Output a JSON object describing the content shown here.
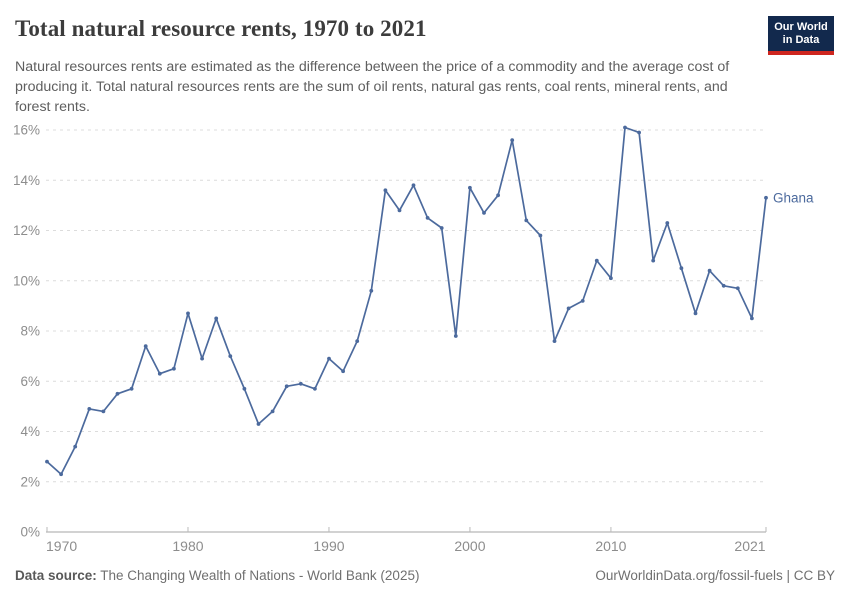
{
  "header": {
    "title": "Total natural resource rents, 1970 to 2021",
    "subtitle": "Natural resources rents are estimated as the difference between the price of a commodity and the average cost of producing it. Total natural resources rents are the sum of oil rents, natural gas rents, coal rents, mineral rents, and forest rents.",
    "logo": {
      "line1": "Our World",
      "line2": "in Data",
      "bg_color": "#12294d",
      "accent_color": "#ce261f"
    }
  },
  "chart_data": {
    "type": "line",
    "title": "Total natural resource rents, 1970 to 2021",
    "xlabel": "",
    "ylabel": "",
    "xlim": [
      1970,
      2021
    ],
    "ylim": [
      0,
      16
    ],
    "grid": "horizontal-dashed",
    "legend_position": "end-of-line-label",
    "x_ticks": [
      {
        "value": 1970,
        "label": "1970"
      },
      {
        "value": 1980,
        "label": "1980"
      },
      {
        "value": 1990,
        "label": "1990"
      },
      {
        "value": 2000,
        "label": "2000"
      },
      {
        "value": 2010,
        "label": "2010"
      },
      {
        "value": 2021,
        "label": "2021"
      }
    ],
    "y_ticks": [
      {
        "value": 0,
        "label": "0%"
      },
      {
        "value": 2,
        "label": "2%"
      },
      {
        "value": 4,
        "label": "4%"
      },
      {
        "value": 6,
        "label": "6%"
      },
      {
        "value": 8,
        "label": "8%"
      },
      {
        "value": 10,
        "label": "10%"
      },
      {
        "value": 12,
        "label": "12%"
      },
      {
        "value": 14,
        "label": "14%"
      },
      {
        "value": 16,
        "label": "16%"
      }
    ],
    "series": [
      {
        "name": "Ghana",
        "color": "#4c6a9d",
        "x": [
          1970,
          1971,
          1972,
          1973,
          1974,
          1975,
          1976,
          1977,
          1978,
          1979,
          1980,
          1981,
          1982,
          1983,
          1984,
          1985,
          1986,
          1987,
          1988,
          1989,
          1990,
          1991,
          1992,
          1993,
          1994,
          1995,
          1996,
          1997,
          1998,
          1999,
          2000,
          2001,
          2002,
          2003,
          2004,
          2005,
          2006,
          2007,
          2008,
          2009,
          2010,
          2011,
          2012,
          2013,
          2014,
          2015,
          2016,
          2017,
          2018,
          2019,
          2020,
          2021
        ],
        "values": [
          2.8,
          2.3,
          3.4,
          4.9,
          4.8,
          5.5,
          5.7,
          7.4,
          6.3,
          6.5,
          8.7,
          6.9,
          8.5,
          7.0,
          5.7,
          4.3,
          4.8,
          5.8,
          5.9,
          5.7,
          6.9,
          6.4,
          7.6,
          9.6,
          13.6,
          12.8,
          13.8,
          12.5,
          12.1,
          7.8,
          13.7,
          12.7,
          13.4,
          15.6,
          12.4,
          11.8,
          7.6,
          8.9,
          9.2,
          10.8,
          10.1,
          16.1,
          15.9,
          10.8,
          12.3,
          10.5,
          8.7,
          10.4,
          9.8,
          9.7,
          8.5,
          13.3
        ]
      }
    ],
    "colors": {
      "line": "#4c6a9d",
      "gridline": "#dcdcdc",
      "axis": "#a5a5a5",
      "tick": "#bababa",
      "tick_text": "#8d8d8d"
    }
  },
  "footer": {
    "source_label": "Data source:",
    "source_text": " The Changing Wealth of Nations - World Bank (2025)",
    "credit": "OurWorldinData.org/fossil-fuels | CC BY"
  }
}
